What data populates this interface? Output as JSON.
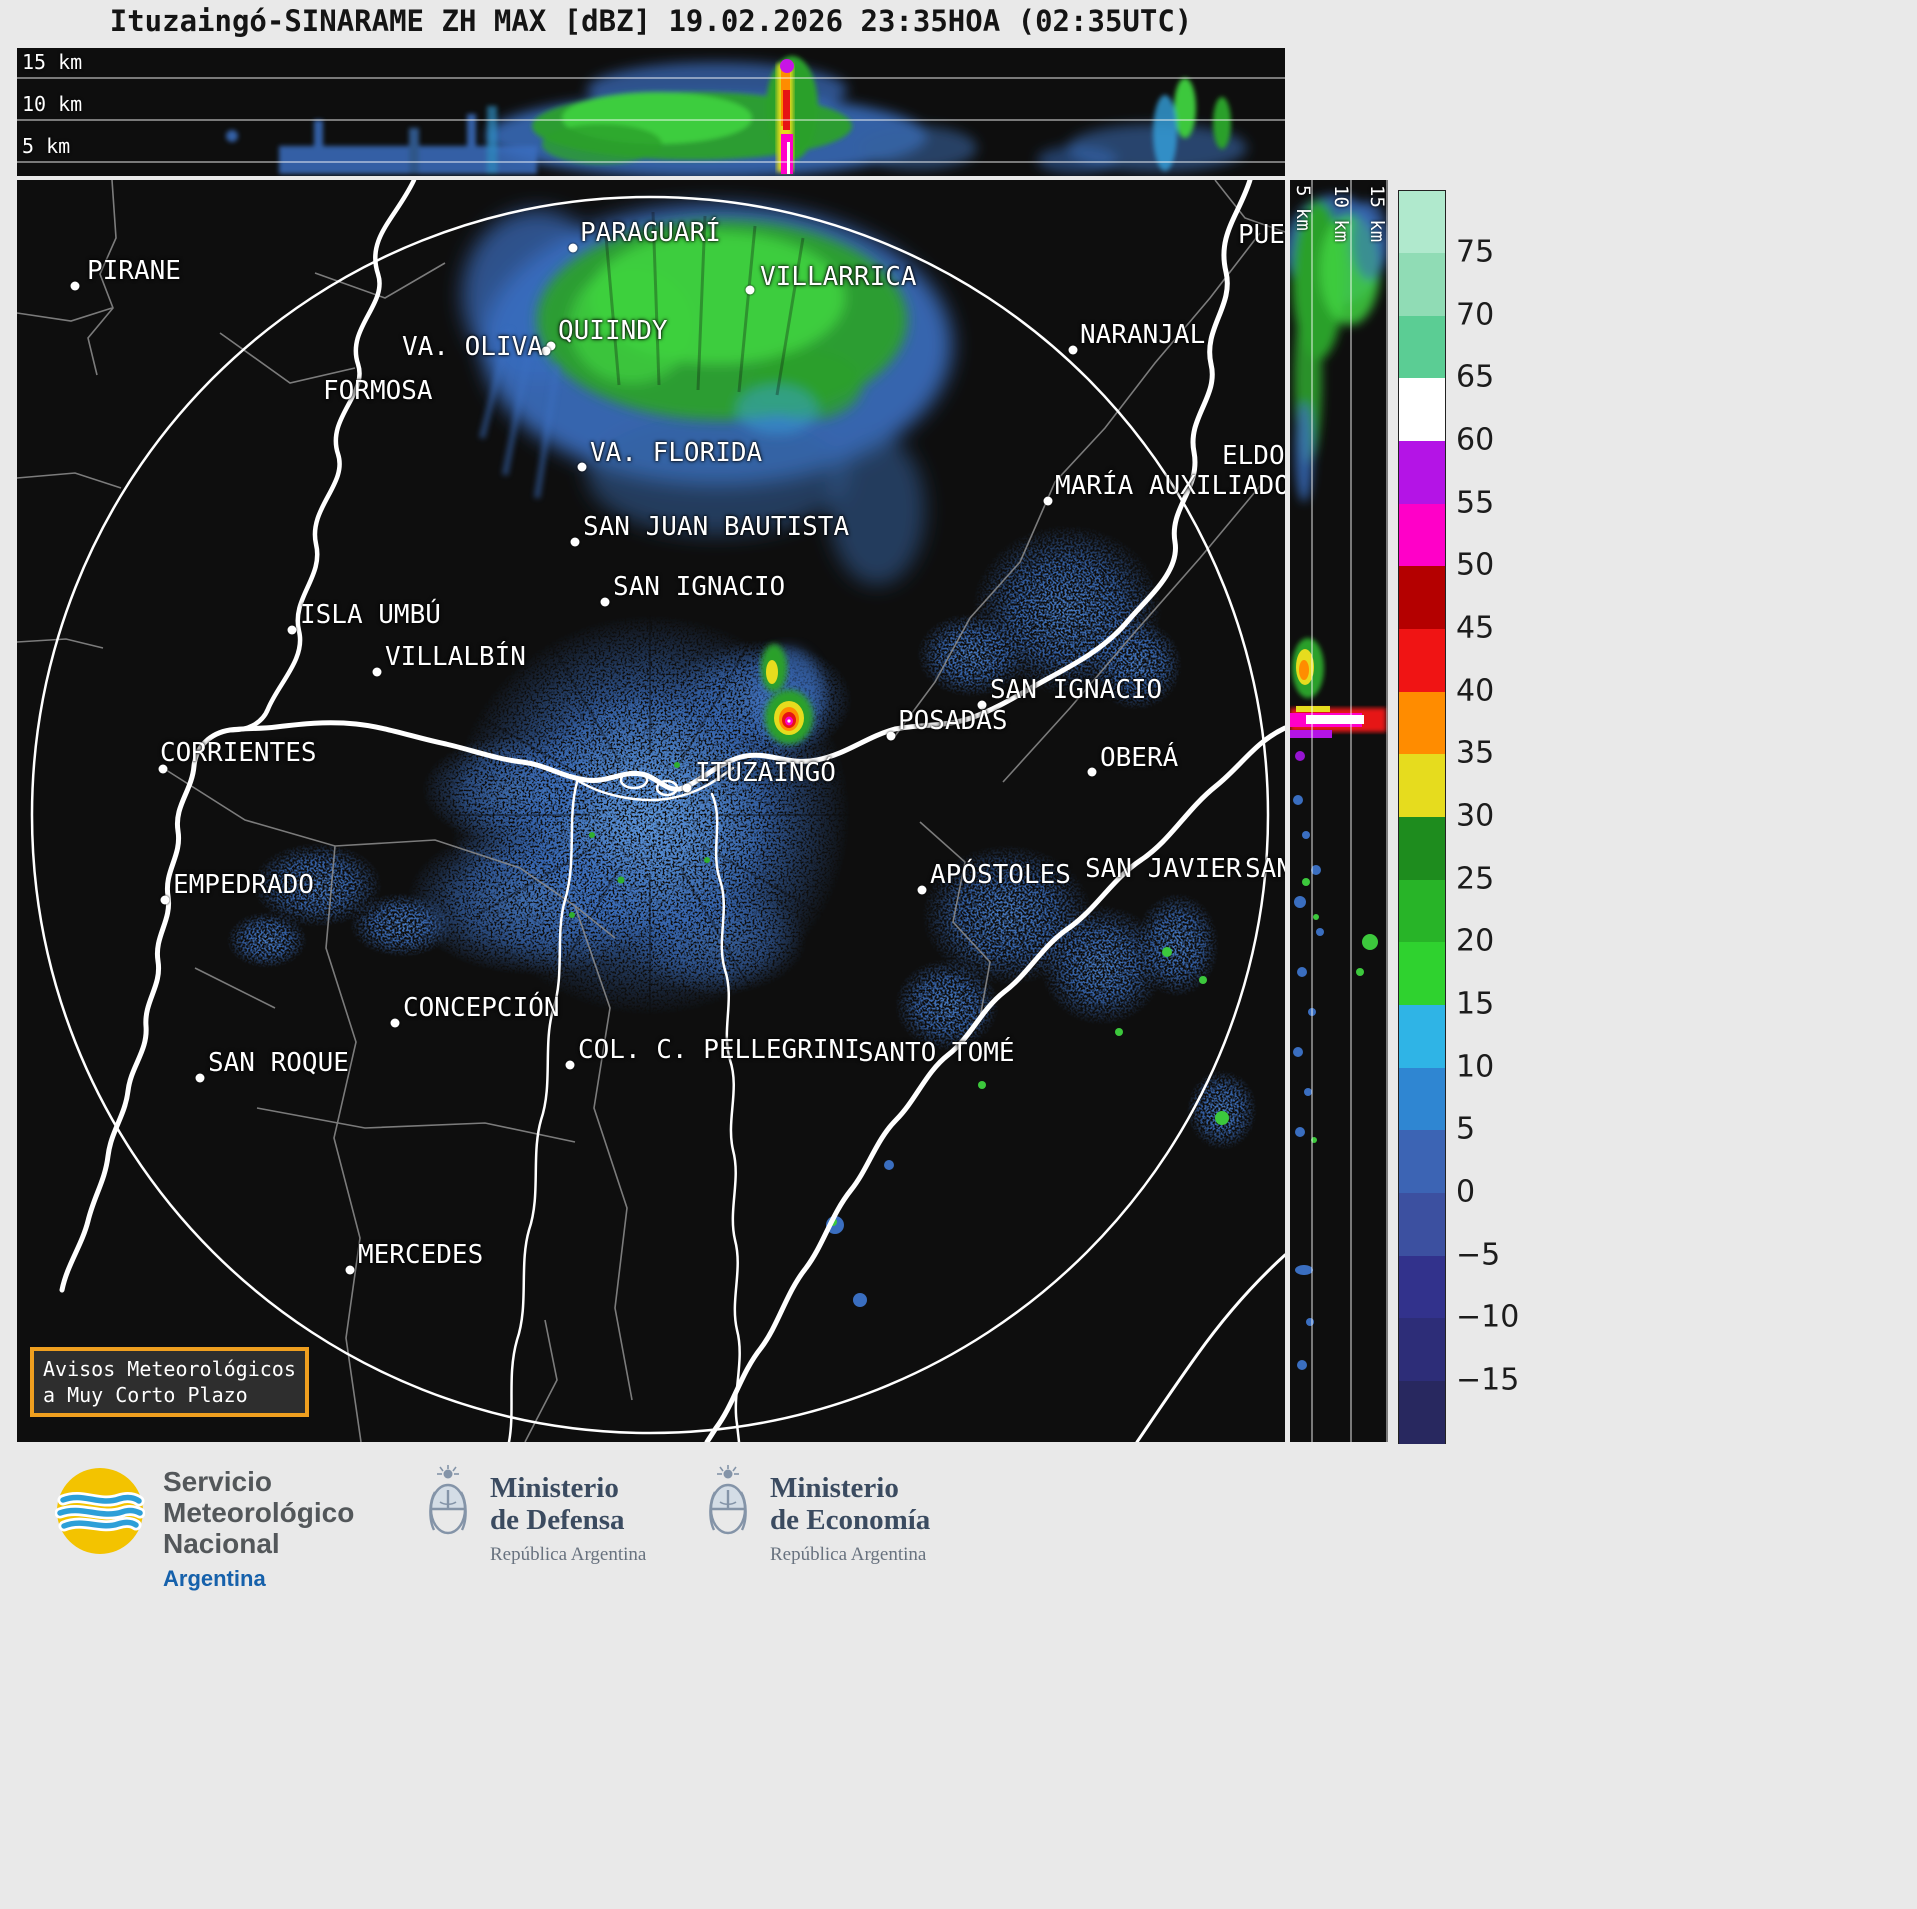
{
  "title": "Ituzaingó-SINARAME ZH MAX [dBZ] 19.02.2026 23:35HOA (02:35UTC)",
  "top_profile": {
    "altitude_labels": [
      "15 km",
      "10 km",
      "5 km"
    ]
  },
  "side_profile": {
    "altitude_labels": [
      "5 km",
      "10 km",
      "15 km"
    ]
  },
  "colorbar": {
    "tick_labels": [
      "75",
      "70",
      "65",
      "60",
      "55",
      "50",
      "45",
      "40",
      "35",
      "30",
      "25",
      "20",
      "15",
      "10",
      "5",
      "0",
      "−5",
      "−10",
      "−15"
    ],
    "segment_colors_top_to_bottom": [
      "#b0e9cd",
      "#90dcb5",
      "#5bcd94",
      "#ffffff",
      "#b414e6",
      "#ff00c8",
      "#b40000",
      "#f01414",
      "#ff8c00",
      "#e6dc1e",
      "#1e8c1e",
      "#28b428",
      "#2fd22f",
      "#2fb4e6",
      "#2f86d2",
      "#3c64b4",
      "#3c50a0",
      "#32328c",
      "#2d2d78",
      "#28285f"
    ]
  },
  "map": {
    "notice": {
      "line1": "Avisos Meteorológicos",
      "line2": "a Muy Corto Plazo"
    },
    "cities": [
      {
        "name": "PIRANE",
        "label": [
          70,
          76
        ],
        "dot": [
          58,
          106
        ]
      },
      {
        "name": "PARAGUARÍ",
        "label": [
          563,
          38
        ],
        "dot": [
          556,
          68
        ]
      },
      {
        "name": "VILLARRICA",
        "label": [
          743,
          82
        ],
        "dot": [
          733,
          110
        ]
      },
      {
        "name": "QUIINDY",
        "label": [
          541,
          136
        ],
        "dot": [
          534,
          166
        ]
      },
      {
        "name": "VA. OLIVA",
        "label": [
          385,
          152
        ],
        "dot": [
          529,
          171
        ]
      },
      {
        "name": "FORMOSA",
        "label": [
          306,
          196
        ],
        "dot": null
      },
      {
        "name": "NARANJAL",
        "label": [
          1063,
          140
        ],
        "dot": [
          1056,
          170
        ]
      },
      {
        "name": "VA. FLORIDA",
        "label": [
          573,
          258
        ],
        "dot": [
          565,
          287
        ]
      },
      {
        "name": "MARÍA AUXILIADORA",
        "label": [
          1038,
          291
        ],
        "dot": [
          1031,
          321
        ]
      },
      {
        "name": "ELDORADO",
        "label": [
          1205,
          261
        ],
        "dot": null
      },
      {
        "name": "PUERTO RICO",
        "label": [
          1221,
          40
        ],
        "dot": null
      },
      {
        "name": "SAN JUAN BAUTISTA",
        "label": [
          566,
          332
        ],
        "dot": [
          558,
          362
        ]
      },
      {
        "name": "SAN IGNACIO",
        "label": [
          596,
          392
        ],
        "dot": [
          588,
          422
        ]
      },
      {
        "name": "ISLA UMBÚ",
        "label": [
          283,
          420
        ],
        "dot": [
          275,
          450
        ]
      },
      {
        "name": "VILLALBÍN",
        "label": [
          368,
          462
        ],
        "dot": [
          360,
          492
        ]
      },
      {
        "name": "SAN IGNACIO",
        "label": [
          973,
          495
        ],
        "dot": [
          965,
          525
        ]
      },
      {
        "name": "POSADAS",
        "label": [
          881,
          526
        ],
        "dot": [
          874,
          556
        ]
      },
      {
        "name": "CORRIENTES",
        "label": [
          143,
          558
        ],
        "dot": [
          146,
          589
        ]
      },
      {
        "name": "ITUZAINGÓ",
        "label": [
          678,
          578
        ],
        "dot": [
          670,
          608
        ]
      },
      {
        "name": "OBERÁ",
        "label": [
          1083,
          563
        ],
        "dot": [
          1075,
          592
        ]
      },
      {
        "name": "EMPEDRADO",
        "label": [
          156,
          690
        ],
        "dot": [
          148,
          720
        ]
      },
      {
        "name": "APÓSTOLES",
        "label": [
          913,
          680
        ],
        "dot": [
          905,
          710
        ]
      },
      {
        "name": "SAN JAVIER",
        "label": [
          1068,
          674
        ],
        "dot": null
      },
      {
        "name": "SAN VICENTE",
        "label": [
          1228,
          674
        ],
        "dot": null
      },
      {
        "name": "CONCEPCIÓN",
        "label": [
          386,
          813
        ],
        "dot": [
          378,
          843
        ]
      },
      {
        "name": "COL. C. PELLEGRINI",
        "label": [
          561,
          855
        ],
        "dot": [
          553,
          885
        ]
      },
      {
        "name": "SANTO TOMÉ",
        "label": [
          841,
          858
        ],
        "dot": null
      },
      {
        "name": "SAN ROQUE",
        "label": [
          191,
          868
        ],
        "dot": [
          183,
          898
        ]
      },
      {
        "name": "MERCEDES",
        "label": [
          341,
          1060
        ],
        "dot": [
          333,
          1090
        ]
      }
    ]
  },
  "footer": {
    "smn": {
      "name_lines": [
        "Servicio",
        "Meteorológico",
        "Nacional"
      ],
      "country": "Argentina"
    },
    "ministries": [
      {
        "line1": "Ministerio",
        "line2": "de Defensa",
        "sub": "República Argentina"
      },
      {
        "line1": "Ministerio",
        "line2": "de Economía",
        "sub": "República Argentina"
      }
    ]
  }
}
